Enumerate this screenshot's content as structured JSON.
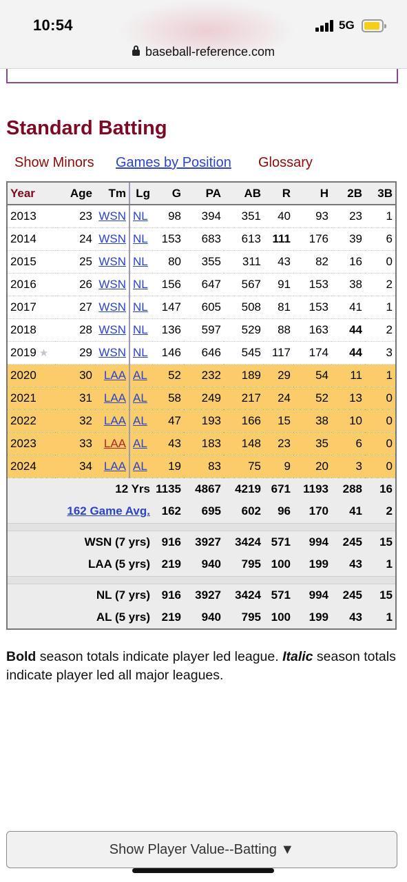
{
  "status_bar": {
    "time": "10:54",
    "network": "5G",
    "icons": [
      "signal-icon",
      "battery-icon"
    ]
  },
  "browser": {
    "url": "baseball-reference.com",
    "lock_icon": "lock-icon"
  },
  "section": {
    "title": "Standard Batting",
    "links": {
      "show_minors": "Show Minors",
      "games_by_position": "Games by Position",
      "glossary": "Glossary"
    }
  },
  "table": {
    "headers": [
      "Year",
      "Age",
      "Tm",
      "Lg",
      "G",
      "PA",
      "AB",
      "R",
      "H",
      "2B",
      "3B"
    ],
    "rows": [
      {
        "year": "2013",
        "age": "23",
        "tm": "WSN",
        "lg": "NL",
        "g": "98",
        "pa": "394",
        "ab": "351",
        "r": "40",
        "h": "93",
        "d": "23",
        "t": "1"
      },
      {
        "year": "2014",
        "age": "24",
        "tm": "WSN",
        "lg": "NL",
        "g": "153",
        "pa": "683",
        "ab": "613",
        "r": "111",
        "h": "176",
        "d": "39",
        "t": "6"
      },
      {
        "year": "2015",
        "age": "25",
        "tm": "WSN",
        "lg": "NL",
        "g": "80",
        "pa": "355",
        "ab": "311",
        "r": "43",
        "h": "82",
        "d": "16",
        "t": "0"
      },
      {
        "year": "2016",
        "age": "26",
        "tm": "WSN",
        "lg": "NL",
        "g": "156",
        "pa": "647",
        "ab": "567",
        "r": "91",
        "h": "153",
        "d": "38",
        "t": "2"
      },
      {
        "year": "2017",
        "age": "27",
        "tm": "WSN",
        "lg": "NL",
        "g": "147",
        "pa": "605",
        "ab": "508",
        "r": "81",
        "h": "153",
        "d": "41",
        "t": "1"
      },
      {
        "year": "2018",
        "age": "28",
        "tm": "WSN",
        "lg": "NL",
        "g": "136",
        "pa": "597",
        "ab": "529",
        "r": "88",
        "h": "163",
        "d": "44",
        "t": "2"
      },
      {
        "year": "2019",
        "age": "29",
        "tm": "WSN",
        "lg": "NL",
        "g": "146",
        "pa": "646",
        "ab": "545",
        "r": "117",
        "h": "174",
        "d": "44",
        "t": "3"
      },
      {
        "year": "2020",
        "age": "30",
        "tm": "LAA",
        "lg": "AL",
        "g": "52",
        "pa": "232",
        "ab": "189",
        "r": "29",
        "h": "54",
        "d": "11",
        "t": "1"
      },
      {
        "year": "2021",
        "age": "31",
        "tm": "LAA",
        "lg": "AL",
        "g": "58",
        "pa": "249",
        "ab": "217",
        "r": "24",
        "h": "52",
        "d": "13",
        "t": "0"
      },
      {
        "year": "2022",
        "age": "32",
        "tm": "LAA",
        "lg": "AL",
        "g": "47",
        "pa": "193",
        "ab": "166",
        "r": "15",
        "h": "38",
        "d": "10",
        "t": "0"
      },
      {
        "year": "2023",
        "age": "33",
        "tm": "LAA",
        "lg": "AL",
        "g": "43",
        "pa": "183",
        "ab": "148",
        "r": "23",
        "h": "35",
        "d": "6",
        "t": "0"
      },
      {
        "year": "2024",
        "age": "34",
        "tm": "LAA",
        "lg": "AL",
        "g": "19",
        "pa": "83",
        "ab": "75",
        "r": "9",
        "h": "20",
        "d": "3",
        "t": "0"
      }
    ],
    "totals": [
      {
        "label": "12 Yrs",
        "g": "1135",
        "pa": "4867",
        "ab": "4219",
        "r": "671",
        "h": "1193",
        "d": "288",
        "t": "16"
      },
      {
        "label": "162 Game Avg.",
        "g": "162",
        "pa": "695",
        "ab": "602",
        "r": "96",
        "h": "170",
        "d": "41",
        "t": "2"
      },
      {
        "label": "WSN (7 yrs)",
        "g": "916",
        "pa": "3927",
        "ab": "3424",
        "r": "571",
        "h": "994",
        "d": "245",
        "t": "15"
      },
      {
        "label": "LAA (5 yrs)",
        "g": "219",
        "pa": "940",
        "ab": "795",
        "r": "100",
        "h": "199",
        "d": "43",
        "t": "1"
      },
      {
        "label": "NL (7 yrs)",
        "g": "916",
        "pa": "3927",
        "ab": "3424",
        "r": "571",
        "h": "994",
        "d": "245",
        "t": "15"
      },
      {
        "label": "AL (5 yrs)",
        "g": "219",
        "pa": "940",
        "ab": "795",
        "r": "100",
        "h": "199",
        "d": "43",
        "t": "1"
      }
    ],
    "colors": {
      "laa_row_bg": "#fbcd6a",
      "link": "#2b44c8",
      "title": "#7d0a24"
    }
  },
  "note": {
    "bold": "Bold",
    "part1": " season totals indicate player led league. ",
    "italic": "Italic",
    "part2": " season totals indicate player led all major leagues."
  },
  "footer_button": {
    "label": "Show Player Value--Batting ▼"
  }
}
